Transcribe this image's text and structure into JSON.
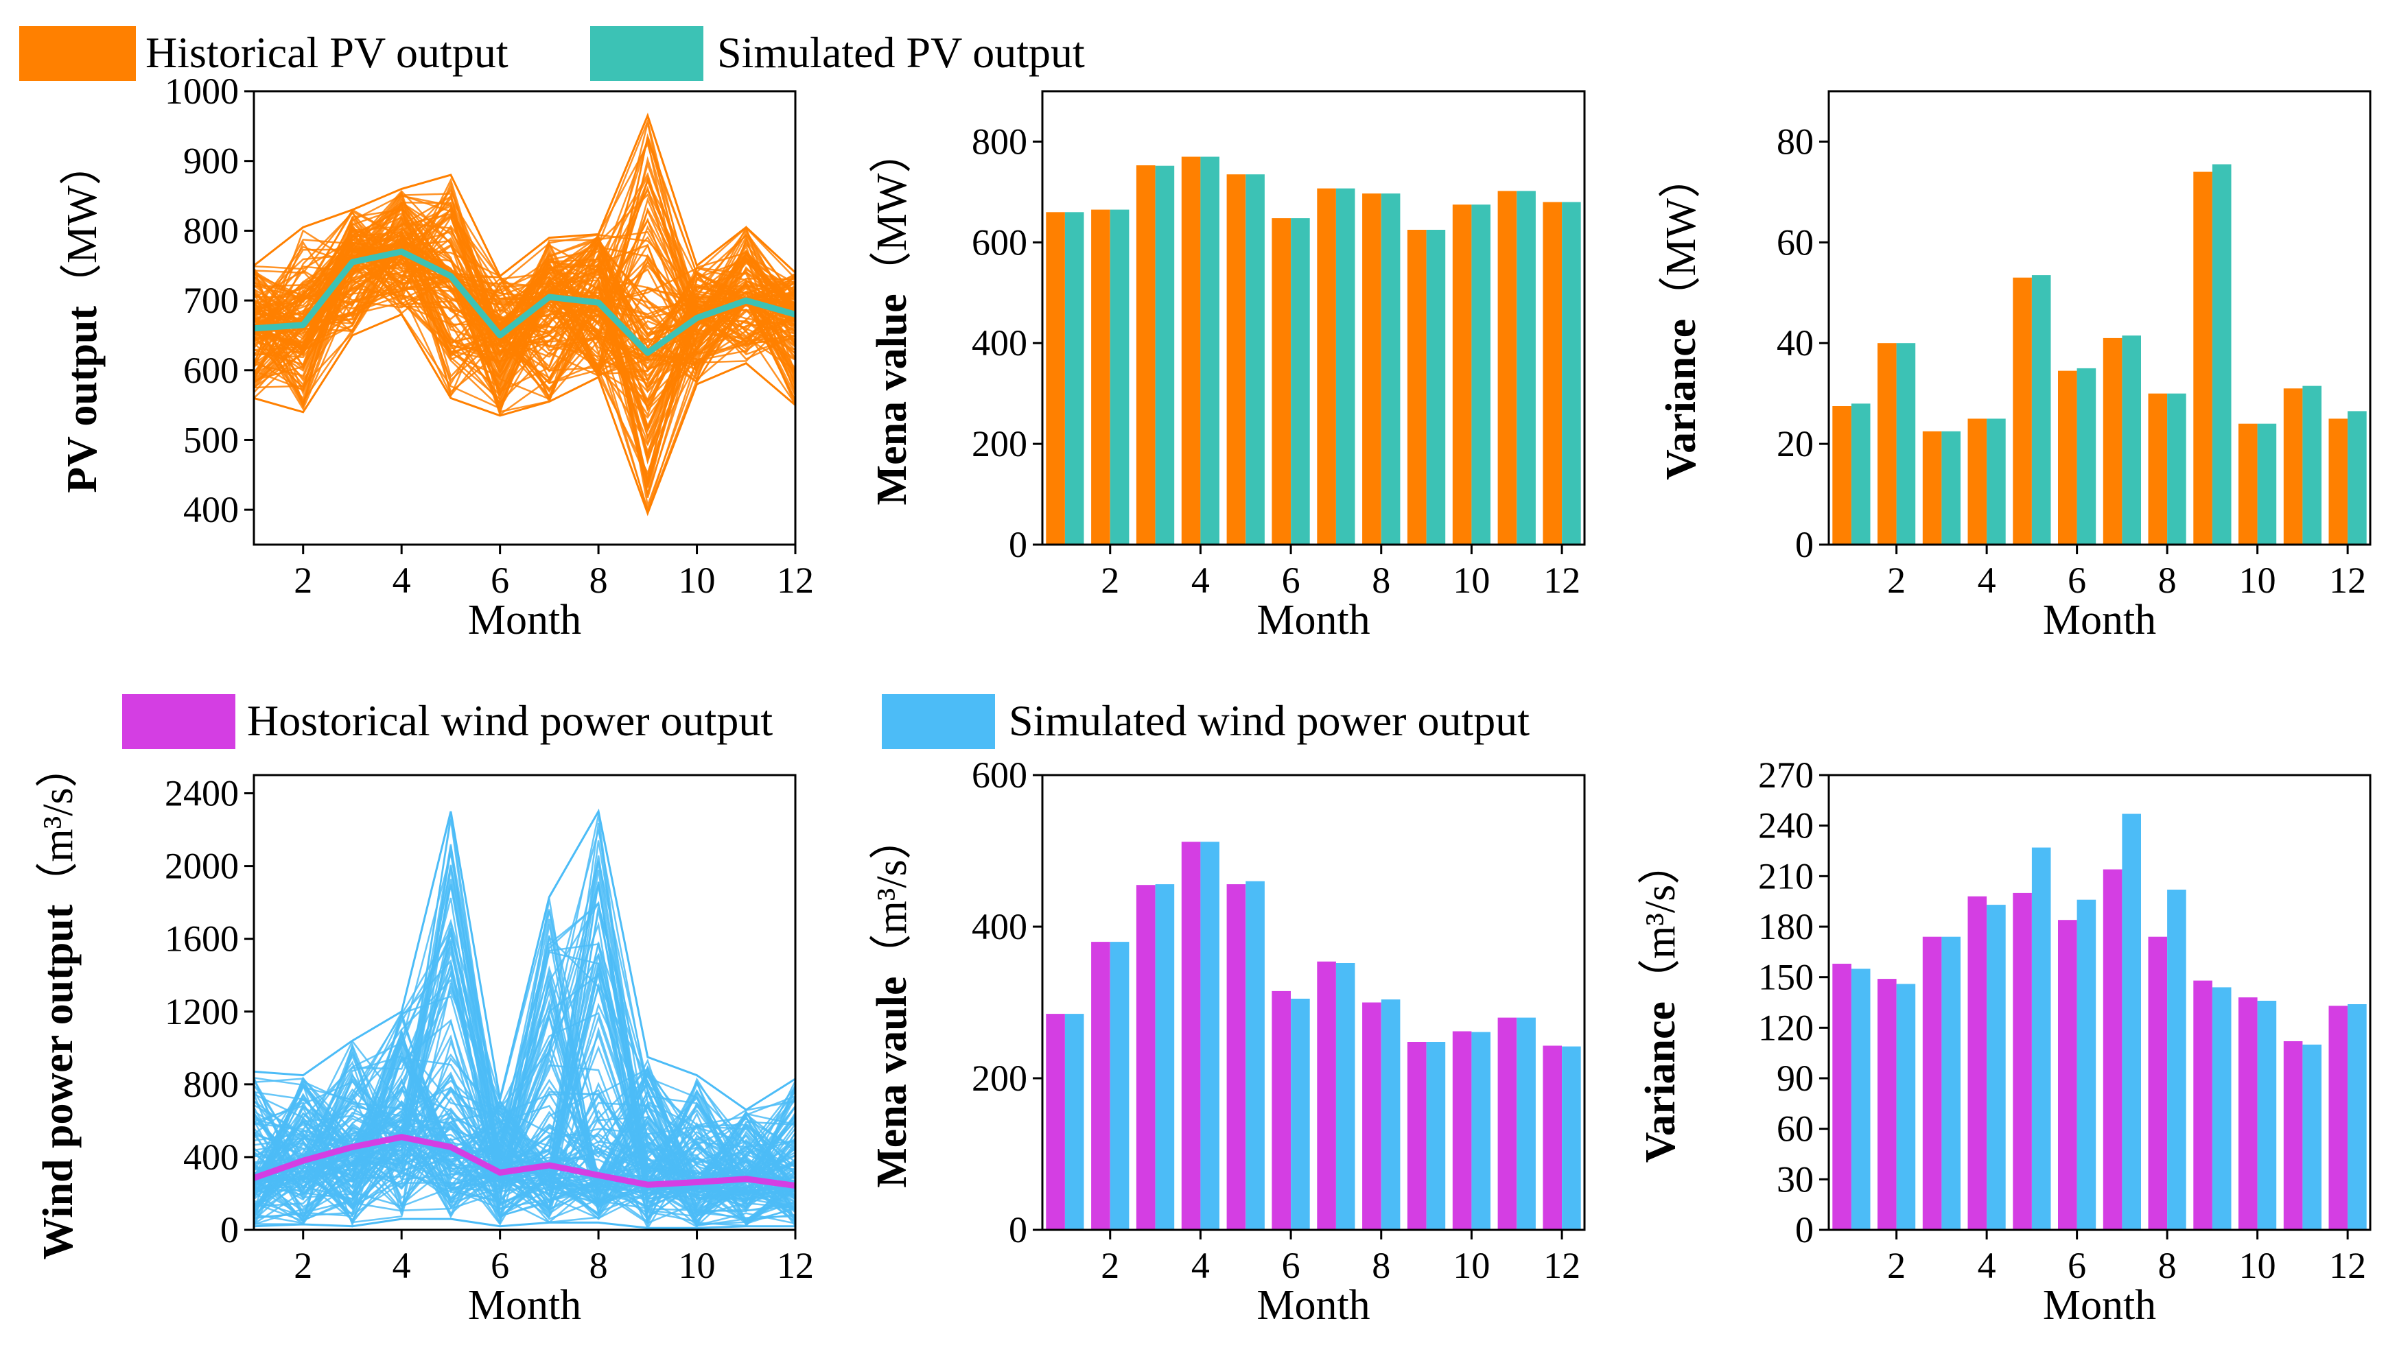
{
  "legends": {
    "pv": [
      {
        "label": "Historical PV output",
        "color": "#ff8000"
      },
      {
        "label": "Simulated PV output",
        "color": "#3cc2b5"
      }
    ],
    "wind": [
      {
        "label": "Hostorical wind power output",
        "color": "#d43ee3"
      },
      {
        "label": "Simulated wind power output",
        "color": "#4cbcf7"
      }
    ]
  },
  "chart_data": [
    {
      "id": "pv_lines",
      "type": "line",
      "xlabel": "Month",
      "ylabel": "PV output",
      "yunit": "（MW）",
      "xlim": [
        1,
        12
      ],
      "ylim": [
        350,
        1000
      ],
      "xticks": [
        2,
        4,
        6,
        8,
        10,
        12
      ],
      "yticks": [
        400,
        500,
        600,
        700,
        800,
        900,
        1000
      ],
      "x": [
        1,
        2,
        3,
        4,
        5,
        6,
        7,
        8,
        9,
        10,
        11,
        12
      ],
      "band_upper": [
        750,
        805,
        830,
        860,
        880,
        735,
        790,
        795,
        965,
        750,
        805,
        740
      ],
      "band_lower": [
        560,
        540,
        650,
        680,
        560,
        535,
        555,
        590,
        395,
        580,
        610,
        550
      ],
      "series": [
        {
          "name": "Historical PV output",
          "color": "#ff8000",
          "values": [
            660,
            665,
            755,
            770,
            735,
            650,
            705,
            697,
            625,
            675,
            700,
            680
          ]
        },
        {
          "name": "Simulated PV output",
          "color": "#3cc2b5",
          "values": [
            660,
            665,
            755,
            770,
            735,
            650,
            705,
            697,
            625,
            675,
            700,
            680
          ]
        }
      ]
    },
    {
      "id": "pv_mean",
      "type": "bar",
      "xlabel": "Month",
      "ylabel": "Mena value",
      "yunit": "（MW）",
      "xlim": [
        0.5,
        12.5
      ],
      "ylim": [
        0,
        900
      ],
      "xticks": [
        2,
        4,
        6,
        8,
        10,
        12
      ],
      "yticks": [
        0,
        200,
        400,
        600,
        800
      ],
      "categories": [
        1,
        2,
        3,
        4,
        5,
        6,
        7,
        8,
        9,
        10,
        11,
        12
      ],
      "series": [
        {
          "name": "Historical PV output",
          "color": "#ff8000",
          "values": [
            660,
            665,
            753,
            770,
            735,
            648,
            707,
            697,
            625,
            675,
            702,
            680
          ]
        },
        {
          "name": "Simulated PV output",
          "color": "#3cc2b5",
          "values": [
            660,
            665,
            752,
            770,
            735,
            648,
            707,
            697,
            625,
            675,
            702,
            680
          ]
        }
      ]
    },
    {
      "id": "pv_var",
      "type": "bar",
      "xlabel": "Month",
      "ylabel": "Variance",
      "yunit": "（MW）",
      "xlim": [
        0.5,
        12.5
      ],
      "ylim": [
        0,
        90
      ],
      "xticks": [
        2,
        4,
        6,
        8,
        10,
        12
      ],
      "yticks": [
        0,
        20,
        40,
        60,
        80
      ],
      "categories": [
        1,
        2,
        3,
        4,
        5,
        6,
        7,
        8,
        9,
        10,
        11,
        12
      ],
      "series": [
        {
          "name": "Historical PV output",
          "color": "#ff8000",
          "values": [
            27.5,
            40,
            22.5,
            25,
            53,
            34.5,
            41,
            30,
            74,
            24,
            31,
            25
          ]
        },
        {
          "name": "Simulated PV output",
          "color": "#3cc2b5",
          "values": [
            28,
            40,
            22.5,
            25,
            53.5,
            35,
            41.5,
            30,
            75.5,
            24,
            31.5,
            26.5
          ]
        }
      ]
    },
    {
      "id": "wind_lines",
      "type": "line",
      "xlabel": "Month",
      "ylabel": "Wind power output",
      "yunit": "（m³/s）",
      "xlim": [
        1,
        12
      ],
      "ylim": [
        0,
        2500
      ],
      "xticks": [
        2,
        4,
        6,
        8,
        10,
        12
      ],
      "yticks": [
        0,
        400,
        800,
        1200,
        1600,
        2000,
        2400
      ],
      "x": [
        1,
        2,
        3,
        4,
        5,
        6,
        7,
        8,
        9,
        10,
        11,
        12
      ],
      "band_upper": [
        870,
        850,
        1040,
        1200,
        2300,
        720,
        1830,
        2300,
        950,
        850,
        660,
        830
      ],
      "band_lower": [
        20,
        30,
        20,
        60,
        60,
        20,
        40,
        40,
        10,
        10,
        20,
        20
      ],
      "series": [
        {
          "name": "Hostorical wind power output",
          "color": "#d43ee3",
          "values": [
            285,
            380,
            455,
            510,
            455,
            315,
            355,
            300,
            248,
            262,
            280,
            243
          ]
        },
        {
          "name": "Simulated wind power output",
          "color": "#4cbcf7",
          "values": [
            285,
            380,
            455,
            510,
            455,
            315,
            355,
            300,
            248,
            262,
            280,
            243
          ]
        }
      ]
    },
    {
      "id": "wind_mean",
      "type": "bar",
      "xlabel": "Month",
      "ylabel": "Mena vaule",
      "yunit": "（m³/s）",
      "xlim": [
        0.5,
        12.5
      ],
      "ylim": [
        0,
        600
      ],
      "xticks": [
        2,
        4,
        6,
        8,
        10,
        12
      ],
      "yticks": [
        0,
        200,
        400,
        600
      ],
      "categories": [
        1,
        2,
        3,
        4,
        5,
        6,
        7,
        8,
        9,
        10,
        11,
        12
      ],
      "series": [
        {
          "name": "Hostorical wind power output",
          "color": "#d43ee3",
          "values": [
            285,
            380,
            455,
            512,
            456,
            315,
            354,
            300,
            248,
            262,
            280,
            243
          ]
        },
        {
          "name": "Simulated wind power output",
          "color": "#4cbcf7",
          "values": [
            285,
            380,
            456,
            512,
            460,
            305,
            352,
            304,
            248,
            261,
            280,
            242
          ]
        }
      ]
    },
    {
      "id": "wind_var",
      "type": "bar",
      "xlabel": "Month",
      "ylabel": "Variance",
      "yunit": "（m³/s）",
      "xlim": [
        0.5,
        12.5
      ],
      "ylim": [
        0,
        270
      ],
      "xticks": [
        2,
        4,
        6,
        8,
        10,
        12
      ],
      "yticks": [
        0,
        30,
        60,
        90,
        120,
        150,
        180,
        210,
        240,
        270
      ],
      "categories": [
        1,
        2,
        3,
        4,
        5,
        6,
        7,
        8,
        9,
        10,
        11,
        12
      ],
      "series": [
        {
          "name": "Hostorical wind power output",
          "color": "#d43ee3",
          "values": [
            158,
            149,
            174,
            198,
            200,
            184,
            214,
            174,
            148,
            138,
            112,
            133
          ]
        },
        {
          "name": "Simulated wind power output",
          "color": "#4cbcf7",
          "values": [
            155,
            146,
            174,
            193,
            227,
            196,
            247,
            202,
            144,
            136,
            110,
            134
          ]
        }
      ]
    }
  ]
}
